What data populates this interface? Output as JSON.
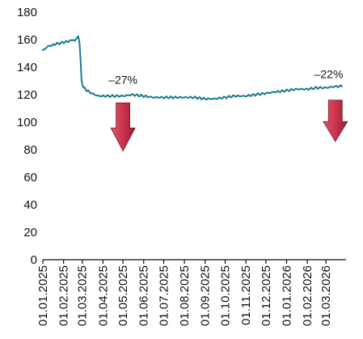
{
  "chart_data": {
    "type": "line",
    "title": "",
    "xlabel": "",
    "ylabel": "",
    "ylim": [
      0,
      180
    ],
    "yticks": [
      0,
      20,
      40,
      60,
      80,
      100,
      120,
      140,
      160,
      180
    ],
    "xtick_labels": [
      "01.01.2025",
      "01.02.2025",
      "01.03.2025",
      "01.04.2025",
      "01.05.2025",
      "01.06.2025",
      "01.07.2025",
      "01.08.2025",
      "01.09.2025",
      "01.10.2025",
      "01.11.2025",
      "01.12.2025",
      "01.01.2026",
      "01.02.2026",
      "01.03.2026"
    ],
    "grid": false,
    "legend": "none",
    "series": [
      {
        "color": "#1a7a90",
        "x": [
          "2025-01-01",
          "2025-01-08",
          "2025-01-15",
          "2025-01-22",
          "2025-02-01",
          "2025-02-10",
          "2025-02-15",
          "2025-02-18",
          "2025-02-20",
          "2025-02-23",
          "2025-02-25",
          "2025-02-28",
          "2025-03-03",
          "2025-03-08",
          "2025-03-15",
          "2025-03-25",
          "2025-04-01",
          "2025-04-15",
          "2025-05-01",
          "2025-05-15",
          "2025-06-01",
          "2025-06-15",
          "2025-07-01",
          "2025-07-15",
          "2025-08-01",
          "2025-08-15",
          "2025-09-01",
          "2025-09-15",
          "2025-10-01",
          "2025-10-15",
          "2025-11-01",
          "2025-11-15",
          "2025-12-01",
          "2025-12-15",
          "2026-01-01",
          "2026-01-15",
          "2026-02-01",
          "2026-02-15",
          "2026-03-01",
          "2026-03-15",
          "2026-03-25"
        ],
        "y": [
          152,
          155,
          156,
          157,
          158,
          159,
          160,
          159,
          161,
          162,
          158,
          130,
          125,
          123,
          121,
          119,
          119,
          119,
          119,
          120,
          119,
          118,
          118,
          118,
          118,
          118,
          117,
          117,
          118,
          119,
          119,
          120,
          121,
          122,
          123,
          124,
          124,
          125,
          125,
          126,
          126
        ]
      }
    ],
    "annotations": [
      {
        "text": "–27%",
        "x": "2025-05-01",
        "y": 128
      },
      {
        "text": "–22%",
        "x": "2026-03-05",
        "y": 132
      }
    ],
    "arrows": [
      {
        "x": "2025-05-01",
        "y_top": 114,
        "y_bottom": 79,
        "color": "#c8314a",
        "direction": "down"
      },
      {
        "x": "2026-03-15",
        "y_top": 116,
        "y_bottom": 86,
        "color": "#c8314a",
        "direction": "down"
      }
    ]
  }
}
